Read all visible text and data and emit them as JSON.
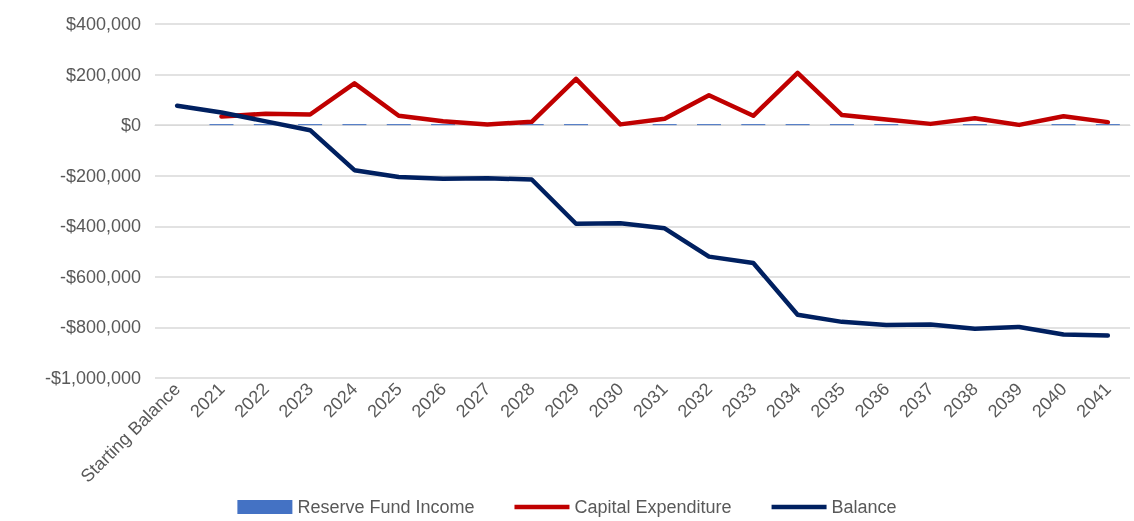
{
  "chart_data": {
    "type": "bar",
    "categories": [
      "Starting Balance",
      "2021",
      "2022",
      "2023",
      "2024",
      "2025",
      "2026",
      "2027",
      "2028",
      "2029",
      "2030",
      "2031",
      "2032",
      "2033",
      "2034",
      "2035",
      "2036",
      "2037",
      "2038",
      "2039",
      "2040",
      "2041"
    ],
    "series": [
      {
        "name": "Reserve Fund Income",
        "color": "#4472c4",
        "values": [
          null,
          4000,
          4000,
          4000,
          4000,
          4000,
          4000,
          null,
          4000,
          4000,
          null,
          4000,
          4000,
          4000,
          4000,
          4000,
          4000,
          null,
          4000,
          null,
          4000,
          4000
        ]
      },
      {
        "name": "Capital Expenditure",
        "type": "line",
        "color": "#c00000",
        "values": [
          null,
          34000,
          45000,
          42000,
          165000,
          37000,
          15000,
          3000,
          13000,
          183000,
          3000,
          25000,
          118000,
          37000,
          207000,
          40000,
          22000,
          5000,
          27000,
          1000,
          35000,
          12000
        ]
      },
      {
        "name": "Balance",
        "type": "line",
        "color": "#002060",
        "values": [
          77000,
          50000,
          15000,
          -20000,
          -178000,
          -205000,
          -212000,
          -210000,
          -215000,
          -390000,
          -388000,
          -408000,
          -520000,
          -545000,
          -750000,
          -778000,
          -790000,
          -788000,
          -805000,
          -798000,
          -828000,
          -832000
        ]
      }
    ],
    "ylim": [
      -1000000,
      400000
    ],
    "yticks": [
      {
        "value": -1000000,
        "label": "-$1,000,000"
      },
      {
        "value": -800000,
        "label": "-$800,000"
      },
      {
        "value": -600000,
        "label": "-$600,000"
      },
      {
        "value": -400000,
        "label": "-$400,000"
      },
      {
        "value": -200000,
        "label": "-$200,000"
      },
      {
        "value": 0,
        "label": "$0"
      },
      {
        "value": 200000,
        "label": "$200,000"
      },
      {
        "value": 400000,
        "label": "$400,000"
      }
    ],
    "grid": "y",
    "legend": "bottom",
    "marker": "none",
    "line_style": "solid"
  }
}
